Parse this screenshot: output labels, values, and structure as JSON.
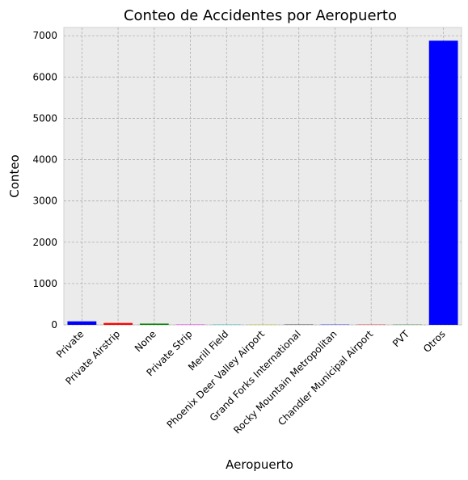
{
  "chart_data": {
    "type": "bar",
    "title": "Conteo de Accidentes por Aeropuerto",
    "xlabel": "Aeropuerto",
    "ylabel": "Conteo",
    "categories": [
      "Private",
      "Private Airstrip",
      "None",
      "Private Strip",
      "Merill Field",
      "Phoenix Deer Valley Airport",
      "Grand Forks International",
      "Rocky Mountain Metropolitan",
      "Chandler Municipal Airport",
      "PVT",
      "Otros"
    ],
    "values": [
      85,
      45,
      30,
      8,
      7,
      7,
      6,
      6,
      6,
      5,
      6880
    ],
    "bar_colors": [
      "#0000ff",
      "#ff0000",
      "#008000",
      "#ff00ff",
      "#00bfbf",
      "#bfbf00",
      "#000000",
      "#0000ff",
      "#ff0000",
      "#008000",
      "#0000ff"
    ],
    "ylim": [
      0,
      7200
    ],
    "yticks": [
      0,
      1000,
      2000,
      3000,
      4000,
      5000,
      6000,
      7000
    ],
    "grid": true
  }
}
